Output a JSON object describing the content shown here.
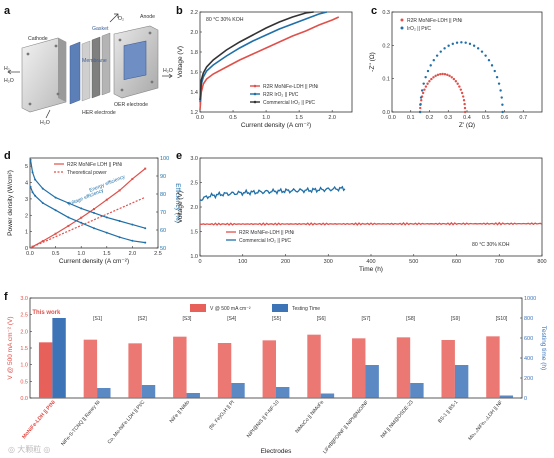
{
  "panels": {
    "a": {
      "label": "a",
      "parts": {
        "cathode": "Cathode",
        "anode": "Anode",
        "gasket": "Gasket",
        "membrane": "Membrane",
        "her": "HER electrode",
        "oer": "OER electrode",
        "h2": "H₂",
        "o2": "O₂",
        "h2o_left": "H₂O",
        "h2o_right": "H₂O",
        "h2o_bottom": "H₂O"
      }
    },
    "b": {
      "label": "b",
      "note": "80 °C 30% KOH"
    },
    "c": {
      "label": "c"
    },
    "d": {
      "label": "d",
      "annot_energy": "Energy efficiency",
      "annot_voltage": "Voltage efficiency"
    },
    "e": {
      "label": "e",
      "note": "80 °C 30% KOH"
    },
    "f": {
      "label": "f",
      "this_work": "This work"
    }
  },
  "colors": {
    "red": "#e0504a",
    "blue": "#1f6fa8",
    "dark": "#333333",
    "barRed": "#e8605a",
    "barBlue": "#3d74b8"
  },
  "chart_data": [
    {
      "id": "b",
      "type": "line",
      "xlabel": "Current density (A cm⁻²)",
      "ylabel": "Voltage (V)",
      "xlim": [
        0,
        2.3
      ],
      "ylim": [
        1.2,
        2.2
      ],
      "xticks": [
        0.0,
        0.5,
        1.0,
        1.5,
        2.0
      ],
      "yticks": [
        1.2,
        1.4,
        1.6,
        1.8,
        2.0,
        2.2
      ],
      "legend_position": "bottom-right",
      "series": [
        {
          "name": "R2R MoNiFe-LDH || PtNi",
          "color": "#e0504a",
          "x": [
            0,
            0.02,
            0.05,
            0.1,
            0.2,
            0.4,
            0.6,
            0.8,
            1.0,
            1.2,
            1.4,
            1.6,
            1.8,
            2.0,
            2.1
          ],
          "y": [
            1.22,
            1.4,
            1.48,
            1.53,
            1.58,
            1.65,
            1.72,
            1.78,
            1.84,
            1.9,
            1.96,
            2.01,
            2.07,
            2.12,
            2.15
          ]
        },
        {
          "name": "R2R IrO₂ || Pt/C",
          "color": "#1f6fa8",
          "x": [
            0,
            0.02,
            0.05,
            0.1,
            0.2,
            0.4,
            0.6,
            0.8,
            1.0,
            1.2,
            1.4,
            1.6,
            1.8,
            1.92
          ],
          "y": [
            1.3,
            1.48,
            1.55,
            1.61,
            1.67,
            1.76,
            1.84,
            1.91,
            1.97,
            2.03,
            2.08,
            2.13,
            2.18,
            2.2
          ]
        },
        {
          "name": "Commercial IrO₂ || Pt/C",
          "color": "#333333",
          "x": [
            0,
            0.02,
            0.05,
            0.1,
            0.2,
            0.4,
            0.6,
            0.8,
            1.0,
            1.2,
            1.4,
            1.6,
            1.72
          ],
          "y": [
            1.32,
            1.52,
            1.59,
            1.65,
            1.72,
            1.82,
            1.9,
            1.97,
            2.04,
            2.1,
            2.15,
            2.19,
            2.2
          ]
        }
      ]
    },
    {
      "id": "c",
      "type": "scatter",
      "xlabel": "Z' (Ω)",
      "ylabel": "-Z'' (Ω)",
      "xlim": [
        0,
        0.8
      ],
      "ylim": [
        0,
        0.3
      ],
      "xticks": [
        0.0,
        0.1,
        0.2,
        0.3,
        0.4,
        0.5,
        0.6,
        0.7
      ],
      "yticks": [
        0.0,
        0.1,
        0.2,
        0.3
      ],
      "legend_position": "top-left",
      "series": [
        {
          "name": "R2R MoNiFe-LDH || PtNi",
          "color": "#e0504a",
          "arc": [
            0.15,
            0.39
          ]
        },
        {
          "name": "IrO₂ || Pt/C",
          "color": "#1f6fa8",
          "arc": [
            0.15,
            0.59
          ]
        }
      ]
    },
    {
      "id": "d",
      "type": "line",
      "xlabel": "Current density (A cm⁻²)",
      "ylabel": "Power density (W/cm²)",
      "y2label": "Efficiency (%)",
      "xlim": [
        0,
        2.5
      ],
      "ylim": [
        0,
        5.5
      ],
      "y2lim": [
        50,
        100
      ],
      "xticks": [
        0.0,
        0.5,
        1.0,
        1.5,
        2.0,
        2.5
      ],
      "yticks": [
        0,
        1,
        2,
        3,
        4,
        5
      ],
      "y2ticks": [
        50,
        60,
        70,
        80,
        90,
        100
      ],
      "legend_position": "top-left",
      "series": [
        {
          "name": "R2R MoNiFe LDH || PtNi",
          "color": "#e0504a",
          "axis": "left",
          "x": [
            0.05,
            0.25,
            0.5,
            0.75,
            1.0,
            1.25,
            1.5,
            1.75,
            2.0,
            2.25
          ],
          "y": [
            0.08,
            0.42,
            0.87,
            1.35,
            1.85,
            2.38,
            2.95,
            3.52,
            4.22,
            4.85
          ]
        },
        {
          "name": "Theoretical power",
          "color": "#e0504a",
          "axis": "left",
          "dashed": true,
          "x": [
            0,
            2.25
          ],
          "y": [
            0,
            3.1
          ]
        },
        {
          "name": "Energy efficiency",
          "color": "#1f6fa8",
          "axis": "right",
          "x": [
            0.01,
            0.05,
            0.1,
            0.25,
            0.5,
            0.75,
            1.0,
            1.25,
            1.5,
            1.75,
            2.0,
            2.25
          ],
          "y": [
            99,
            92,
            88,
            83,
            78,
            75,
            72,
            69.5,
            67,
            65,
            63,
            61
          ]
        },
        {
          "name": "Voltage efficiency",
          "color": "#1f6fa8",
          "axis": "right",
          "x": [
            0.01,
            0.05,
            0.1,
            0.25,
            0.5,
            0.75,
            1.0,
            1.25,
            1.5,
            1.75,
            2.0,
            2.25
          ],
          "y": [
            84,
            81,
            79,
            75,
            71,
            67,
            64,
            61,
            58.5,
            56,
            54,
            53
          ]
        }
      ]
    },
    {
      "id": "e",
      "type": "line",
      "xlabel": "Time (h)",
      "ylabel": "Voltage (V)",
      "xlim": [
        0,
        800
      ],
      "ylim": [
        1.0,
        3.0
      ],
      "xticks": [
        0,
        100,
        200,
        300,
        400,
        500,
        600,
        700,
        800
      ],
      "yticks": [
        1.0,
        1.5,
        2.0,
        2.5,
        3.0
      ],
      "legend_position": "bottom-left",
      "series": [
        {
          "name": "R2R MoNiFe-LDH || PtNi",
          "color": "#e0504a",
          "x": [
            0,
            800
          ],
          "y": [
            1.65,
            1.66
          ]
        },
        {
          "name": "Commercial IrO₂ || Pt/C",
          "color": "#1f6fa8",
          "x": [
            0,
            20,
            50,
            100,
            150,
            200,
            250,
            300,
            340
          ],
          "y": [
            2.15,
            2.22,
            2.26,
            2.29,
            2.31,
            2.33,
            2.34,
            2.36,
            2.38
          ]
        }
      ]
    },
    {
      "id": "f",
      "type": "bar",
      "xlabel": "Electrodes",
      "ylabel": "V @ 500 mA cm⁻² (V)",
      "y2label": "Testing time (h)",
      "ylim": [
        0,
        3.0
      ],
      "y2lim": [
        0,
        1000
      ],
      "yticks": [
        0.0,
        0.5,
        1.0,
        1.5,
        2.0,
        2.5,
        3.0
      ],
      "y2ticks": [
        0,
        200,
        400,
        600,
        800,
        1000
      ],
      "legend_position": "top-center",
      "ref_labels": [
        "",
        "[S1]",
        "[S2]",
        "[S3]",
        "[S4]",
        "[S5]",
        "[S6]",
        "[S7]",
        "[S8]",
        "[S9]",
        "[S10]"
      ],
      "categories": [
        "MoNiFe-LDH || PtNi",
        "NiFe-S-TCNQ || Raney Ni",
        "Co, Mo-NiFe LDH || Pt/C",
        "NiFe || NiMo",
        "(Ni, Fe)O₂H || Pt",
        "NiPt@NiS || P-NF-10",
        "NiMoCo || NiMoFe",
        "LiFeB||POINF || NiPt@NiO/NF",
        "NM || NM@OSDE-23",
        "BS-1 || BS-1",
        "Mo₀.₁NiFe₀.₀LDH || NF"
      ],
      "series": [
        {
          "name": "V @ 500 mA cm⁻²",
          "axis": "left",
          "color": "#e8605a",
          "values": [
            1.67,
            1.75,
            1.64,
            1.84,
            1.65,
            1.73,
            1.9,
            1.79,
            1.82,
            1.74,
            1.85
          ]
        },
        {
          "name": "Testing Time",
          "axis": "right",
          "color": "#3d74b8",
          "values": [
            800,
            100,
            130,
            50,
            150,
            110,
            45,
            330,
            150,
            330,
            25
          ]
        }
      ]
    }
  ]
}
